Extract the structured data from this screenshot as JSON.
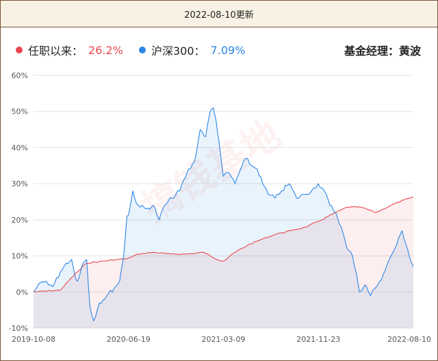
{
  "header": {
    "update_text": "2022-08-10更新"
  },
  "legend": {
    "fund": {
      "name": "任职以来：",
      "value": "26.2%",
      "color": "#e8474d"
    },
    "index": {
      "name": "沪深300：",
      "value": "7.09%",
      "color": "#2b86e6"
    },
    "manager": "基金经理：黄波"
  },
  "watermark": "搞钱基地",
  "chart_data": {
    "type": "line",
    "x_tick_labels": [
      "2019-10-08",
      "2020-06-19",
      "2021-03-09",
      "2021-11-23",
      "2022-08-10"
    ],
    "x_range": [
      "2019-10-08",
      "2022-08-10"
    ],
    "ylim": [
      -10,
      60
    ],
    "y_tick_values": [
      -10,
      0,
      10,
      20,
      30,
      40,
      50,
      60
    ],
    "y_tick_labels": [
      "-10%",
      "0%",
      "10%",
      "20%",
      "30%",
      "40%",
      "50%",
      "60%"
    ],
    "grid": true,
    "series": [
      {
        "name": "任职以来",
        "color": "#e8474d",
        "fill": "rgba(232,71,77,0.09)",
        "x": [
          "2019-10-08",
          "2019-11-15",
          "2019-12-20",
          "2020-01-20",
          "2020-03-01",
          "2020-04-10",
          "2020-05-20",
          "2020-06-19",
          "2020-07-20",
          "2020-08-30",
          "2020-10-15",
          "2020-11-30",
          "2021-01-15",
          "2021-02-10",
          "2021-03-09",
          "2021-04-10",
          "2021-05-15",
          "2021-06-20",
          "2021-07-30",
          "2021-09-10",
          "2021-10-20",
          "2021-11-23",
          "2021-12-31",
          "2022-02-10",
          "2022-03-20",
          "2022-04-30",
          "2022-06-10",
          "2022-07-15",
          "2022-08-10"
        ],
        "values": [
          0,
          0.3,
          0.5,
          4,
          8,
          8.5,
          9,
          9.2,
          10.5,
          11,
          10.5,
          10.5,
          11,
          9.5,
          8.5,
          11,
          13,
          14.5,
          16,
          17,
          18,
          19.5,
          21.5,
          23.5,
          23.5,
          22,
          24,
          25.5,
          26.2
        ]
      },
      {
        "name": "沪深300",
        "color": "#2b86e6",
        "fill": "rgba(43,134,230,0.10)",
        "x": [
          "2019-10-08",
          "2019-10-25",
          "2019-11-12",
          "2019-11-30",
          "2019-12-20",
          "2020-01-05",
          "2020-01-20",
          "2020-01-28",
          "2020-02-05",
          "2020-02-20",
          "2020-03-01",
          "2020-03-10",
          "2020-03-20",
          "2020-04-05",
          "2020-04-25",
          "2020-05-15",
          "2020-05-30",
          "2020-06-10",
          "2020-06-19",
          "2020-06-25",
          "2020-07-05",
          "2020-07-10",
          "2020-07-20",
          "2020-08-10",
          "2020-08-30",
          "2020-09-15",
          "2020-09-30",
          "2020-10-20",
          "2020-11-10",
          "2020-11-30",
          "2020-12-20",
          "2021-01-05",
          "2021-01-20",
          "2021-02-01",
          "2021-02-10",
          "2021-02-18",
          "2021-02-25",
          "2021-03-09",
          "2021-03-25",
          "2021-04-10",
          "2021-04-25",
          "2021-05-10",
          "2021-05-25",
          "2021-06-10",
          "2021-06-25",
          "2021-07-10",
          "2021-07-28",
          "2021-08-15",
          "2021-09-05",
          "2021-09-25",
          "2021-10-15",
          "2021-11-05",
          "2021-11-23",
          "2021-12-10",
          "2021-12-25",
          "2022-01-10",
          "2022-01-25",
          "2022-02-10",
          "2022-02-25",
          "2022-03-08",
          "2022-03-16",
          "2022-03-31",
          "2022-04-15",
          "2022-04-27",
          "2022-05-10",
          "2022-05-25",
          "2022-06-10",
          "2022-06-25",
          "2022-07-10",
          "2022-07-25",
          "2022-08-01",
          "2022-08-10"
        ],
        "values": [
          0,
          2.5,
          3,
          1.5,
          5.5,
          8,
          9,
          5,
          3,
          8,
          9,
          -4,
          -8,
          -3,
          -1,
          1,
          3,
          10,
          21,
          22,
          28,
          26,
          24,
          23,
          24,
          20,
          24,
          26,
          28,
          33,
          36,
          45,
          43,
          50,
          51,
          47,
          42,
          32,
          33,
          30,
          34,
          37,
          35,
          34,
          30,
          27,
          26,
          28,
          30,
          26,
          27,
          28,
          30,
          28,
          24,
          22,
          18,
          12,
          10,
          5,
          0,
          2,
          -1,
          1,
          3,
          6,
          10,
          13,
          17,
          12,
          9,
          7.09
        ]
      }
    ]
  }
}
